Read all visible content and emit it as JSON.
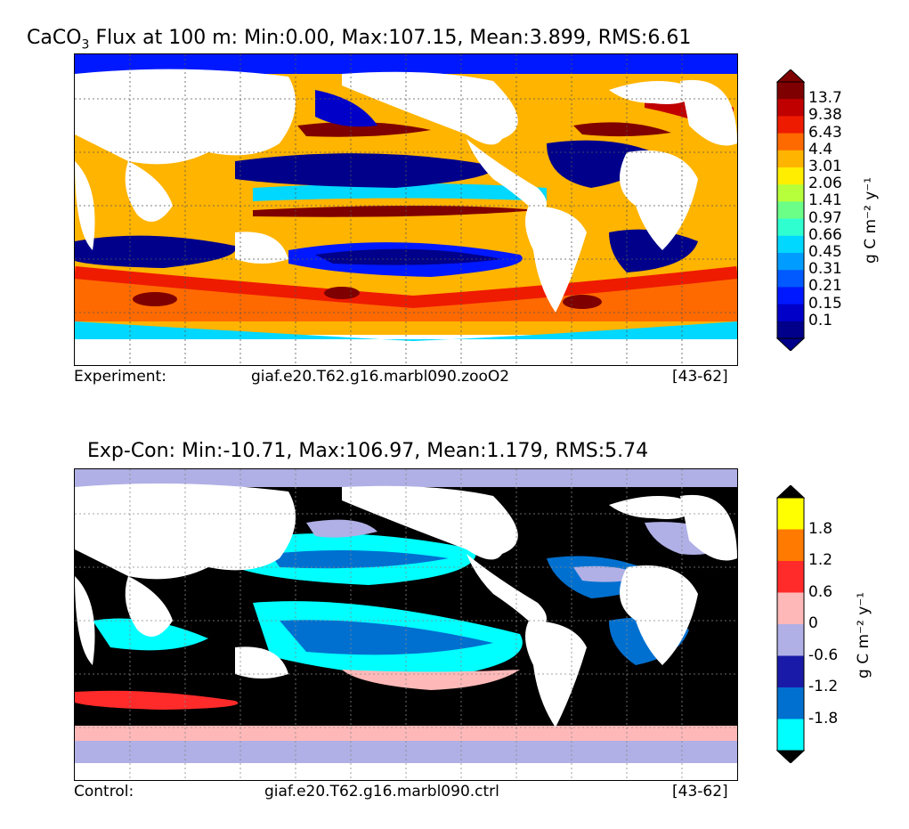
{
  "top_panel": {
    "title_prefix": "CaCO",
    "title_sub": "3",
    "title_rest": " Flux at 100 m: Min:0.00, Max:107.15, Mean:3.899, RMS:6.61",
    "footer_left": "Experiment:",
    "footer_mid": "giaf.e20.T62.g16.marbl090.zooO2",
    "footer_right": "[43-62]",
    "colorbar_label": "g C m⁻² y⁻¹",
    "colorbar_ticks": [
      "13.7",
      "9.38",
      "6.43",
      "4.4",
      "3.01",
      "2.06",
      "1.41",
      "0.97",
      "0.66",
      "0.45",
      "0.31",
      "0.21",
      "0.15",
      "0.1"
    ],
    "colorbar_colors": [
      "#7f0000",
      "#c00000",
      "#ee1b00",
      "#ff6a00",
      "#ffb400",
      "#ffee00",
      "#b7ff3b",
      "#6bff88",
      "#2fffd0",
      "#00d8ff",
      "#009cff",
      "#005aff",
      "#0018ff",
      "#0000c8",
      "#00008a"
    ]
  },
  "bottom_panel": {
    "title": "Exp-Con: Min:-10.71, Max:106.97, Mean:1.179, RMS:5.74",
    "footer_left": "Control:",
    "footer_mid": "giaf.e20.T62.g16.marbl090.ctrl",
    "footer_right": "[43-62]",
    "colorbar_label": "g C m⁻² y⁻¹",
    "colorbar_ticks": [
      "1.8",
      "1.2",
      "0.6",
      "0",
      "-0.6",
      "-1.2",
      "-1.8"
    ],
    "colorbar_colors": [
      "#ffff00",
      "#ff7a00",
      "#ff2a2a",
      "#ffb8b8",
      "#b0b0e6",
      "#1a1aa8",
      "#0070d0",
      "#00ffff"
    ],
    "colorbar_over": "#000000",
    "colorbar_under": "#000000"
  }
}
